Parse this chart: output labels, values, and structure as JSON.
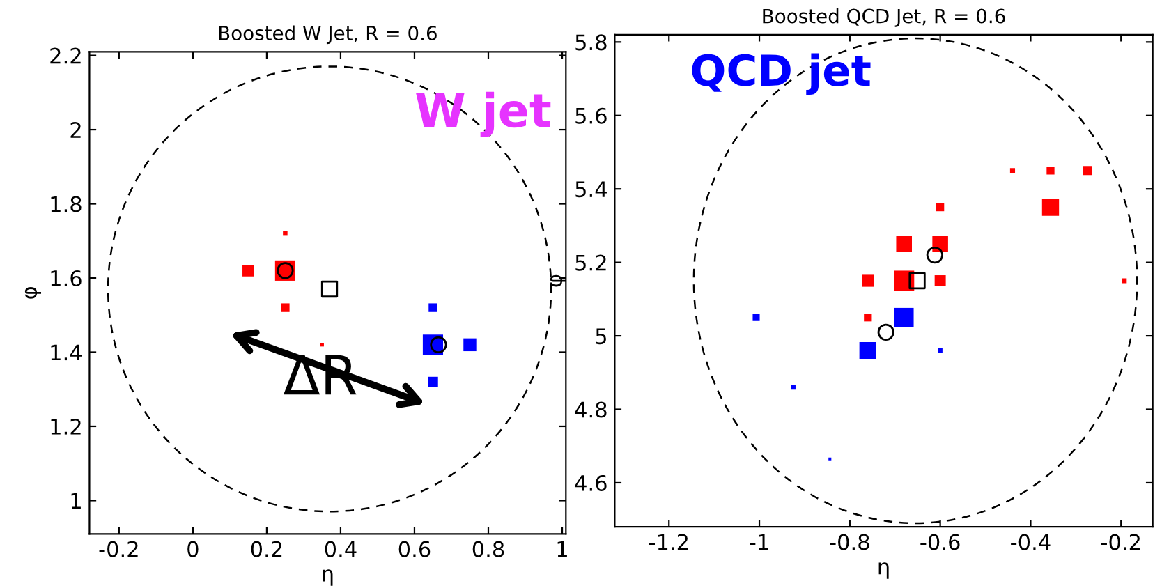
{
  "chart_data": [
    {
      "type": "bubble",
      "title": "Boosted W Jet, R = 0.6",
      "xlabel": "η",
      "ylabel": "φ",
      "marker": "square",
      "xlim": [
        -0.28,
        1.01
      ],
      "ylim": [
        0.91,
        2.21
      ],
      "xticks": [
        -0.2,
        0,
        0.2,
        0.4,
        0.6,
        0.8,
        1
      ],
      "yticks": [
        1,
        1.2,
        1.4,
        1.6,
        1.8,
        2,
        2.2
      ],
      "grid": false,
      "legend": false,
      "annotations": [
        "W jet",
        "ΔR"
      ],
      "series": [
        {
          "color": "#ff0000",
          "x": [
            0.25,
            0.15,
            0.25,
            0.25,
            0.35
          ],
          "values": [
            1.72,
            1.62,
            1.62,
            1.52,
            1.42
          ],
          "sizes": [
            0.05,
            0.33,
            1,
            0.18,
            0.03
          ]
        },
        {
          "color": "#0000ff",
          "x": [
            0.65,
            0.65,
            0.75,
            0.65
          ],
          "values": [
            1.52,
            1.42,
            1.42,
            1.32
          ],
          "sizes": [
            0.18,
            1,
            0.4,
            0.25
          ]
        },
        {
          "type": "scatter",
          "color": "#000000",
          "marker": "square",
          "x": [
            0.37
          ],
          "values": [
            1.57
          ]
        },
        {
          "type": "scatter",
          "color": "#000000",
          "marker": "circle",
          "x": [
            0.25,
            0.665
          ],
          "values": [
            1.62,
            1.42
          ]
        }
      ]
    },
    {
      "type": "bubble",
      "title": "Boosted QCD Jet, R = 0.6",
      "xlabel": "η",
      "ylabel": "φ",
      "marker": "square",
      "xlim": [
        -1.32,
        -0.13
      ],
      "ylim": [
        4.48,
        5.82
      ],
      "xticks": [
        -1.2,
        -1,
        -0.8,
        -0.6,
        -0.4,
        -0.2
      ],
      "yticks": [
        4.6,
        4.8,
        5,
        5.2,
        5.4,
        5.6,
        5.8
      ],
      "grid": false,
      "legend": false,
      "annotations": [
        "QCD jet"
      ],
      "series": [
        {
          "color": "#ff0000",
          "x": [
            -0.44,
            -0.356,
            -0.275,
            -0.356,
            -0.6,
            -0.68,
            -0.6,
            -0.76,
            -0.68,
            -0.6,
            -0.193,
            -0.76
          ],
          "values": [
            5.45,
            5.45,
            5.45,
            5.35,
            5.35,
            5.25,
            5.25,
            5.15,
            5.15,
            5.15,
            5.15,
            5.05
          ],
          "sizes": [
            0.06,
            0.15,
            0.2,
            0.7,
            0.15,
            0.6,
            0.6,
            0.35,
            1,
            0.3,
            0.06,
            0.15
          ]
        },
        {
          "color": "#0000ff",
          "x": [
            -0.68,
            -0.76,
            -1.007,
            -0.925,
            -0.844,
            -0.6
          ],
          "values": [
            5.05,
            4.96,
            5.05,
            4.86,
            4.665,
            4.96
          ],
          "sizes": [
            0.9,
            0.7,
            0.12,
            0.05,
            0.02,
            0.05
          ]
        },
        {
          "type": "scatter",
          "color": "#000000",
          "marker": "square",
          "x": [
            -0.651
          ],
          "values": [
            5.15
          ]
        },
        {
          "type": "scatter",
          "color": "#000000",
          "marker": "circle",
          "x": [
            -0.612,
            -0.72
          ],
          "values": [
            5.22,
            5.01
          ]
        }
      ]
    }
  ]
}
